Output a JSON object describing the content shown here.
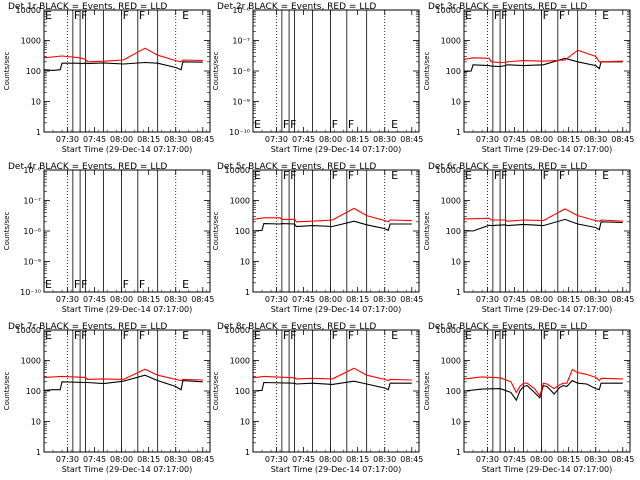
{
  "colors": {
    "events": "#000000",
    "lld": "#ff0000",
    "background": "#ffffff"
  },
  "x_tick_labels": [
    "07:30",
    "07:45",
    "08:00",
    "08:15",
    "08:30",
    "08:45"
  ],
  "x_axis_label": "Start Time (29-Dec-14 07:17:00)",
  "y_axis_label": "Counts/sec",
  "chart_data": [
    {
      "id": "det1",
      "title": "Det 1r  BLACK = Events, RED = LLD",
      "type": "line",
      "scale": "log",
      "ylim": [
        1,
        10000
      ],
      "y_tick_labels": [
        "10000",
        "1000",
        "100",
        "10",
        "1"
      ],
      "flags": [
        {
          "label": "E",
          "t": 0
        },
        {
          "label": "F",
          "t": 16
        },
        {
          "label": "F",
          "t": 20
        },
        {
          "label": "F",
          "t": 43
        },
        {
          "label": "F",
          "t": 52
        },
        {
          "label": "E",
          "t": 76
        }
      ],
      "series": [
        {
          "name": "Events",
          "color": "#000000",
          "x": [
            0,
            5,
            9,
            10,
            19,
            20,
            23,
            24,
            33,
            44,
            56,
            63,
            73,
            76,
            77,
            88
          ],
          "y": [
            110,
            105,
            110,
            180,
            180,
            175,
            180,
            175,
            185,
            170,
            190,
            180,
            130,
            110,
            200,
            195
          ]
        },
        {
          "name": "LLD",
          "color": "#ff0000",
          "x": [
            0,
            10,
            20,
            23,
            24,
            33,
            44,
            56,
            63,
            73,
            76,
            77,
            88
          ],
          "y": [
            270,
            310,
            270,
            240,
            200,
            210,
            230,
            560,
            330,
            220,
            200,
            230,
            220
          ]
        }
      ]
    },
    {
      "id": "det2",
      "title": "Det 2r  BLACK = Events, RED = LLD",
      "type": "line",
      "scale": "log",
      "ylim": [
        1e-06,
        1e-10
      ],
      "y_tick_labels": [
        "10⁻⁶",
        "10⁻⁷",
        "10⁻⁸",
        "10⁻⁹",
        "10⁻¹⁰"
      ],
      "flags": [
        {
          "label": "E",
          "t": 0
        },
        {
          "label": "F",
          "t": 16
        },
        {
          "label": "F",
          "t": 20
        },
        {
          "label": "F",
          "t": 43
        },
        {
          "label": "F",
          "t": 52
        },
        {
          "label": "E",
          "t": 76
        }
      ],
      "series": []
    },
    {
      "id": "det3",
      "title": "Det 3r  BLACK = Events, RED = LLD",
      "type": "line",
      "scale": "log",
      "ylim": [
        1,
        10000
      ],
      "y_tick_labels": [
        "10000",
        "1000",
        "100",
        "10",
        "1"
      ],
      "flags": [
        {
          "label": "E",
          "t": 0
        },
        {
          "label": "F",
          "t": 16
        },
        {
          "label": "F",
          "t": 20
        },
        {
          "label": "F",
          "t": 43
        },
        {
          "label": "F",
          "t": 52
        },
        {
          "label": "E",
          "t": 76
        }
      ],
      "series": [
        {
          "name": "Events",
          "color": "#000000",
          "x": [
            0,
            4,
            5,
            14,
            15,
            20,
            23,
            24,
            33,
            44,
            56,
            63,
            73,
            75,
            76,
            88
          ],
          "y": [
            95,
            100,
            160,
            150,
            145,
            140,
            150,
            160,
            150,
            160,
            260,
            200,
            150,
            120,
            200,
            200
          ]
        },
        {
          "name": "LLD",
          "color": "#ff0000",
          "x": [
            0,
            5,
            14,
            15,
            20,
            23,
            24,
            33,
            44,
            56,
            63,
            73,
            75,
            76,
            88
          ],
          "y": [
            240,
            270,
            260,
            200,
            190,
            190,
            200,
            220,
            210,
            230,
            480,
            300,
            200,
            200,
            210
          ]
        }
      ]
    },
    {
      "id": "det4",
      "title": "Det 4r  BLACK = Events, RED = LLD",
      "type": "line",
      "scale": "log",
      "ylim": [
        1e-06,
        1e-10
      ],
      "y_tick_labels": [
        "10⁻⁶",
        "10⁻⁷",
        "10⁻⁸",
        "10⁻⁹",
        "10⁻¹⁰"
      ],
      "flags": [
        {
          "label": "E",
          "t": 0
        },
        {
          "label": "F",
          "t": 16
        },
        {
          "label": "F",
          "t": 20
        },
        {
          "label": "F",
          "t": 43
        },
        {
          "label": "F",
          "t": 52
        },
        {
          "label": "E",
          "t": 76
        }
      ],
      "series": []
    },
    {
      "id": "det5",
      "title": "Det 5r  BLACK = Events, RED = LLD",
      "type": "line",
      "scale": "log",
      "ylim": [
        1,
        10000
      ],
      "y_tick_labels": [
        "10000",
        "1000",
        "100",
        "10",
        "1"
      ],
      "flags": [
        {
          "label": "E",
          "t": 0
        },
        {
          "label": "F",
          "t": 16
        },
        {
          "label": "F",
          "t": 20
        },
        {
          "label": "F",
          "t": 43
        },
        {
          "label": "F",
          "t": 52
        },
        {
          "label": "E",
          "t": 76
        }
      ],
      "series": [
        {
          "name": "Events",
          "color": "#000000",
          "x": [
            0,
            5,
            6,
            15,
            16,
            23,
            24,
            33,
            44,
            56,
            63,
            73,
            75,
            76,
            88
          ],
          "y": [
            100,
            105,
            175,
            170,
            175,
            170,
            140,
            150,
            140,
            210,
            160,
            120,
            105,
            170,
            170
          ]
        },
        {
          "name": "LLD",
          "color": "#ff0000",
          "x": [
            0,
            6,
            15,
            16,
            23,
            24,
            33,
            44,
            56,
            63,
            73,
            75,
            76,
            88
          ],
          "y": [
            240,
            270,
            270,
            240,
            240,
            200,
            210,
            230,
            550,
            320,
            220,
            200,
            230,
            220
          ]
        }
      ]
    },
    {
      "id": "det6",
      "title": "Det 6r  BLACK = Events, RED = LLD",
      "type": "line",
      "scale": "log",
      "ylim": [
        1,
        10000
      ],
      "y_tick_labels": [
        "10000",
        "1000",
        "100",
        "10",
        "1"
      ],
      "flags": [
        {
          "label": "E",
          "t": 0
        },
        {
          "label": "F",
          "t": 16
        },
        {
          "label": "F",
          "t": 20
        },
        {
          "label": "F",
          "t": 43
        },
        {
          "label": "F",
          "t": 52
        },
        {
          "label": "E",
          "t": 76
        }
      ],
      "series": [
        {
          "name": "Events",
          "color": "#000000",
          "x": [
            0,
            5,
            14,
            15,
            23,
            24,
            33,
            44,
            56,
            63,
            73,
            75,
            76,
            88
          ],
          "y": [
            105,
            100,
            155,
            150,
            160,
            150,
            165,
            150,
            240,
            170,
            130,
            110,
            200,
            190
          ]
        },
        {
          "name": "LLD",
          "color": "#ff0000",
          "x": [
            0,
            14,
            15,
            23,
            24,
            33,
            44,
            56,
            63,
            73,
            75,
            76,
            88
          ],
          "y": [
            250,
            260,
            230,
            230,
            210,
            230,
            220,
            530,
            320,
            220,
            210,
            230,
            210
          ]
        }
      ]
    },
    {
      "id": "det7",
      "title": "Det 7r  BLACK = Events, RED = LLD",
      "type": "line",
      "scale": "log",
      "ylim": [
        1,
        10000
      ],
      "y_tick_labels": [
        "10000",
        "1000",
        "100",
        "10",
        "1"
      ],
      "flags": [
        {
          "label": "E",
          "t": 0
        },
        {
          "label": "F",
          "t": 16
        },
        {
          "label": "F",
          "t": 20
        },
        {
          "label": "F",
          "t": 43
        },
        {
          "label": "F",
          "t": 52
        },
        {
          "label": "E",
          "t": 76
        }
      ],
      "series": [
        {
          "name": "Events",
          "color": "#000000",
          "x": [
            0,
            5,
            9,
            10,
            23,
            24,
            33,
            44,
            56,
            63,
            73,
            76,
            77,
            88
          ],
          "y": [
            105,
            110,
            110,
            200,
            190,
            190,
            175,
            210,
            330,
            220,
            140,
            110,
            220,
            200
          ]
        },
        {
          "name": "LLD",
          "color": "#ff0000",
          "x": [
            0,
            10,
            23,
            24,
            33,
            44,
            56,
            63,
            73,
            76,
            77,
            88
          ],
          "y": [
            280,
            300,
            280,
            240,
            250,
            240,
            520,
            330,
            240,
            220,
            240,
            230
          ]
        }
      ]
    },
    {
      "id": "det8",
      "title": "Det 8r  BLACK = Events, RED = LLD",
      "type": "line",
      "scale": "log",
      "ylim": [
        1,
        10000
      ],
      "y_tick_labels": [
        "10000",
        "1000",
        "100",
        "10",
        "1"
      ],
      "flags": [
        {
          "label": "E",
          "t": 0
        },
        {
          "label": "F",
          "t": 16
        },
        {
          "label": "F",
          "t": 20
        },
        {
          "label": "F",
          "t": 43
        },
        {
          "label": "F",
          "t": 52
        },
        {
          "label": "E",
          "t": 76
        }
      ],
      "series": [
        {
          "name": "Events",
          "color": "#000000",
          "x": [
            0,
            5,
            6,
            23,
            24,
            33,
            44,
            56,
            63,
            73,
            75,
            76,
            88
          ],
          "y": [
            100,
            105,
            190,
            180,
            170,
            180,
            165,
            210,
            170,
            125,
            110,
            180,
            180
          ]
        },
        {
          "name": "LLD",
          "color": "#ff0000",
          "x": [
            0,
            6,
            23,
            24,
            33,
            44,
            56,
            63,
            73,
            75,
            76,
            88
          ],
          "y": [
            270,
            300,
            270,
            250,
            260,
            250,
            560,
            330,
            240,
            220,
            240,
            230
          ]
        }
      ]
    },
    {
      "id": "det9",
      "title": "Det 9r  BLACK = Events, RED = LLD",
      "type": "line",
      "scale": "log",
      "ylim": [
        1,
        10000
      ],
      "y_tick_labels": [
        "10000",
        "1000",
        "100",
        "10",
        "1"
      ],
      "flags": [
        {
          "label": "E",
          "t": 0
        },
        {
          "label": "F",
          "t": 16
        },
        {
          "label": "F",
          "t": 20
        },
        {
          "label": "F",
          "t": 43
        },
        {
          "label": "F",
          "t": 52
        },
        {
          "label": "E",
          "t": 76
        }
      ],
      "series": [
        {
          "name": "Events",
          "color": "#000000",
          "x": [
            0,
            10,
            20,
            26,
            29,
            31,
            33,
            35,
            39,
            42,
            44,
            46,
            50,
            53,
            55,
            57,
            60,
            63,
            68,
            73,
            75,
            76,
            88
          ],
          "y": [
            100,
            115,
            120,
            90,
            50,
            100,
            140,
            150,
            90,
            60,
            150,
            140,
            80,
            130,
            150,
            140,
            220,
            180,
            170,
            120,
            110,
            180,
            180
          ]
        },
        {
          "name": "LLD",
          "color": "#ff0000",
          "x": [
            0,
            10,
            20,
            26,
            29,
            31,
            33,
            35,
            39,
            42,
            44,
            46,
            50,
            53,
            55,
            57,
            60,
            63,
            68,
            73,
            75,
            76,
            88
          ],
          "y": [
            250,
            290,
            270,
            200,
            90,
            140,
            180,
            180,
            120,
            70,
            180,
            170,
            120,
            160,
            180,
            180,
            500,
            400,
            350,
            280,
            220,
            260,
            250
          ]
        }
      ]
    }
  ]
}
